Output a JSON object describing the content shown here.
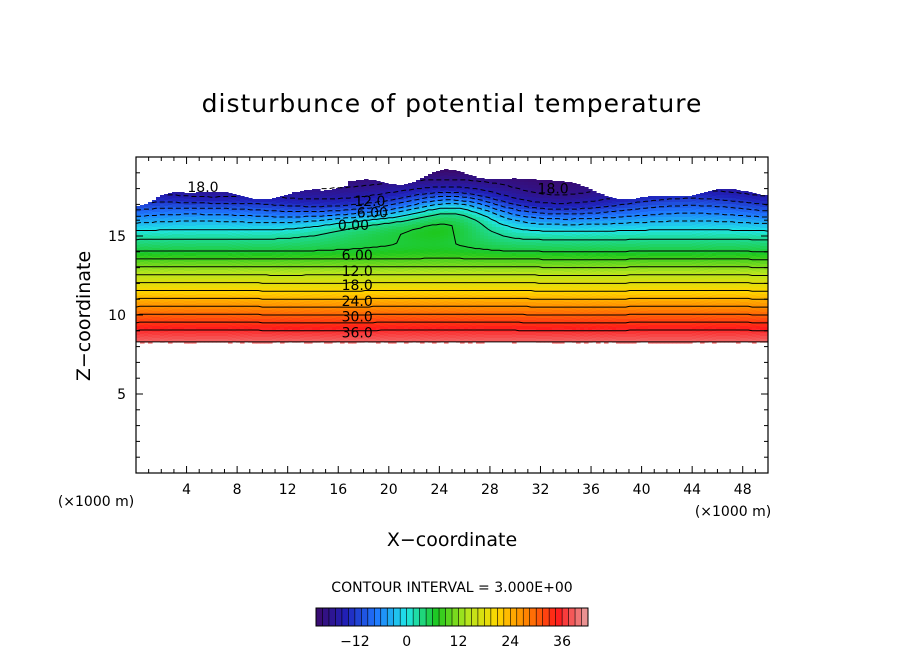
{
  "chart_data": {
    "type": "heatmap",
    "title": "disturbunce of potential temperature",
    "xlabel": "X−coordinate",
    "ylabel": "Z−coordinate",
    "x_unit_left": "(×1000 m)",
    "x_unit_right": "(×1000 m)",
    "xlim": [
      0,
      50
    ],
    "ylim": [
      0,
      20
    ],
    "x_ticks": [
      "4",
      "8",
      "12",
      "16",
      "20",
      "24",
      "28",
      "32",
      "36",
      "40",
      "44",
      "48"
    ],
    "y_ticks": [
      "5",
      "10",
      "15"
    ],
    "contour_interval_text": "CONTOUR INTERVAL = 3.000E+00",
    "contour_interval": 3.0,
    "contour_labels": [
      {
        "text": "18.0",
        "x": 5.3,
        "z": 18.1
      },
      {
        "text": "12.0",
        "x": 18.5,
        "z": 17.2
      },
      {
        "text": "6.00",
        "x": 18.7,
        "z": 16.5
      },
      {
        "text": "0.00",
        "x": 17.2,
        "z": 15.7
      },
      {
        "text": "6.00",
        "x": 17.5,
        "z": 13.8
      },
      {
        "text": "12.0",
        "x": 17.5,
        "z": 12.8
      },
      {
        "text": "18.0",
        "x": 17.5,
        "z": 11.9
      },
      {
        "text": "24.0",
        "x": 17.5,
        "z": 10.9
      },
      {
        "text": "30.0",
        "x": 17.5,
        "z": 9.9
      },
      {
        "text": "36.0",
        "x": 17.5,
        "z": 8.9
      },
      {
        "text": "18.0",
        "x": 33.0,
        "z": 18.0
      }
    ],
    "field_profile": {
      "z": [
        8.3,
        9.0,
        10.0,
        11.0,
        12.0,
        13.0,
        14.0,
        15.0,
        15.8,
        16.5,
        17.2,
        18.0,
        18.8,
        19.3
      ],
      "value": [
        39,
        36,
        30,
        24,
        18,
        12,
        6,
        2,
        -3,
        -8,
        -13,
        -17,
        -20,
        -22
      ]
    },
    "data_bottom_z": 8.3,
    "colorbar": {
      "range": [
        -21,
        42
      ],
      "tick_labels": [
        "−12",
        "0",
        "12",
        "24",
        "36"
      ],
      "tick_values": [
        -12,
        0,
        12,
        24,
        36
      ],
      "colors": [
        "#3b0a6b",
        "#2020b8",
        "#1f78ff",
        "#20e6e6",
        "#1ec81e",
        "#b4e61e",
        "#ffd700",
        "#ff8000",
        "#ff1a1a",
        "#e8a0a0"
      ]
    }
  }
}
